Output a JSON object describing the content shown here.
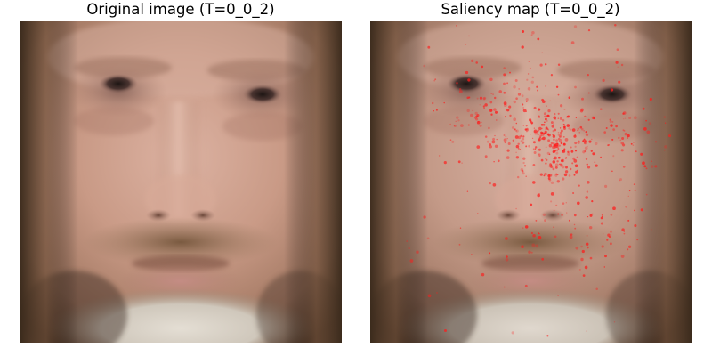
{
  "panels": [
    {
      "title": "Original image (T=0_0_2)"
    },
    {
      "title": "Saliency map (T=0_0_2)"
    }
  ],
  "colors": {
    "skin": "#c99a86",
    "beard_gray": "#d8d2c8",
    "beard_brown": "#8a6a4c",
    "background_dark": "#2a2118",
    "saliency": "#ff1a1a"
  },
  "image": {
    "subject": "photo-of-face"
  }
}
